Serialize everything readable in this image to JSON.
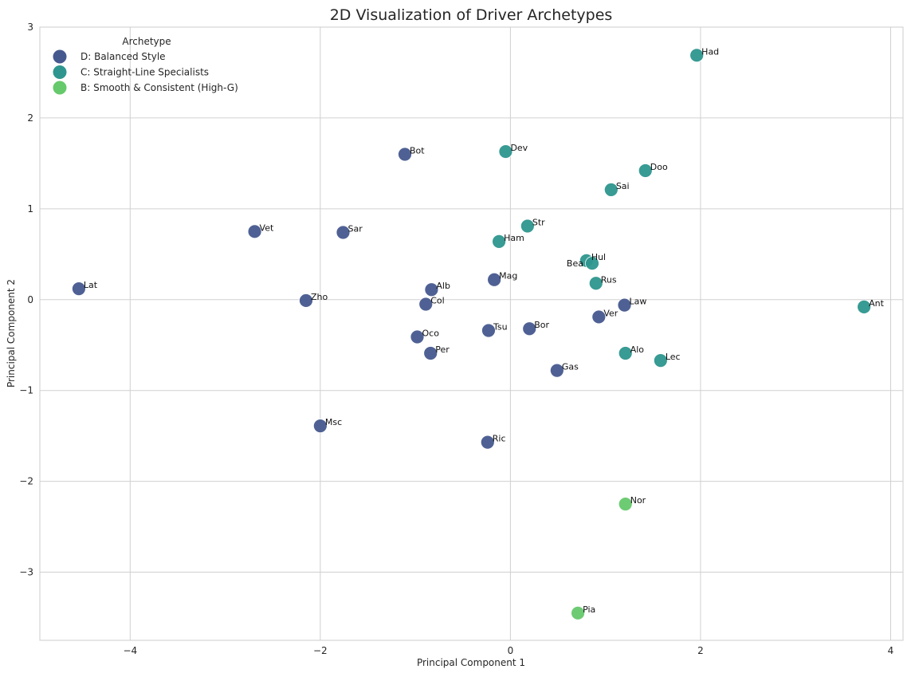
{
  "chart_data": {
    "type": "scatter",
    "title": "2D Visualization of Driver Archetypes",
    "xlabel": "Principal Component 1",
    "ylabel": "Principal Component 2",
    "xlim": [
      -4.95,
      4.13
    ],
    "ylim": [
      -3.75,
      3.0
    ],
    "xticks": [
      -4,
      -2,
      0,
      2,
      4
    ],
    "yticks": [
      -3,
      -2,
      -1,
      0,
      1,
      2,
      3
    ],
    "grid": true,
    "legend": {
      "title": "Archetype",
      "placement": "top-left",
      "entries": [
        {
          "key": "D",
          "label": "D: Balanced Style",
          "color": "#46598f"
        },
        {
          "key": "C",
          "label": "C: Straight-Line Specialists",
          "color": "#2e968f"
        },
        {
          "key": "B",
          "label": "B: Smooth & Consistent (High-G)",
          "color": "#66c96c"
        }
      ]
    },
    "points": [
      {
        "label": "Had",
        "x": 1.96,
        "y": 2.69,
        "group": "C"
      },
      {
        "label": "Dev",
        "x": -0.05,
        "y": 1.63,
        "group": "C"
      },
      {
        "label": "Bot",
        "x": -1.11,
        "y": 1.6,
        "group": "D"
      },
      {
        "label": "Doo",
        "x": 1.42,
        "y": 1.42,
        "group": "C"
      },
      {
        "label": "Sai",
        "x": 1.06,
        "y": 1.21,
        "group": "C"
      },
      {
        "label": "Str",
        "x": 0.18,
        "y": 0.81,
        "group": "C"
      },
      {
        "label": "Vet",
        "x": -2.69,
        "y": 0.75,
        "group": "D"
      },
      {
        "label": "Sar",
        "x": -1.76,
        "y": 0.74,
        "group": "D"
      },
      {
        "label": "Ham",
        "x": -0.12,
        "y": 0.64,
        "group": "C"
      },
      {
        "label": "Hul",
        "x": 0.8,
        "y": 0.43,
        "group": "C"
      },
      {
        "label": "Bea",
        "x": 0.86,
        "y": 0.4,
        "group": "C"
      },
      {
        "label": "Lat",
        "x": -4.54,
        "y": 0.12,
        "group": "D"
      },
      {
        "label": "Mag",
        "x": -0.17,
        "y": 0.22,
        "group": "D"
      },
      {
        "label": "Alb",
        "x": -0.83,
        "y": 0.11,
        "group": "D"
      },
      {
        "label": "Rus",
        "x": 0.9,
        "y": 0.18,
        "group": "C"
      },
      {
        "label": "Zho",
        "x": -2.15,
        "y": -0.01,
        "group": "D"
      },
      {
        "label": "Col",
        "x": -0.89,
        "y": -0.05,
        "group": "D"
      },
      {
        "label": "Law",
        "x": 1.2,
        "y": -0.06,
        "group": "D"
      },
      {
        "label": "Ant",
        "x": 3.72,
        "y": -0.08,
        "group": "C"
      },
      {
        "label": "Ver",
        "x": 0.93,
        "y": -0.19,
        "group": "D"
      },
      {
        "label": "Tsu",
        "x": -0.23,
        "y": -0.34,
        "group": "D"
      },
      {
        "label": "Bor",
        "x": 0.2,
        "y": -0.32,
        "group": "D"
      },
      {
        "label": "Oco",
        "x": -0.98,
        "y": -0.41,
        "group": "D"
      },
      {
        "label": "Per",
        "x": -0.84,
        "y": -0.59,
        "group": "D"
      },
      {
        "label": "Alo",
        "x": 1.21,
        "y": -0.59,
        "group": "C"
      },
      {
        "label": "Lec",
        "x": 1.58,
        "y": -0.67,
        "group": "C"
      },
      {
        "label": "Gas",
        "x": 0.49,
        "y": -0.78,
        "group": "D"
      },
      {
        "label": "Msc",
        "x": -2.0,
        "y": -1.39,
        "group": "D"
      },
      {
        "label": "Ric",
        "x": -0.24,
        "y": -1.57,
        "group": "D"
      },
      {
        "label": "Nor",
        "x": 1.21,
        "y": -2.25,
        "group": "B"
      },
      {
        "label": "Pia",
        "x": 0.71,
        "y": -3.45,
        "group": "B"
      }
    ]
  }
}
